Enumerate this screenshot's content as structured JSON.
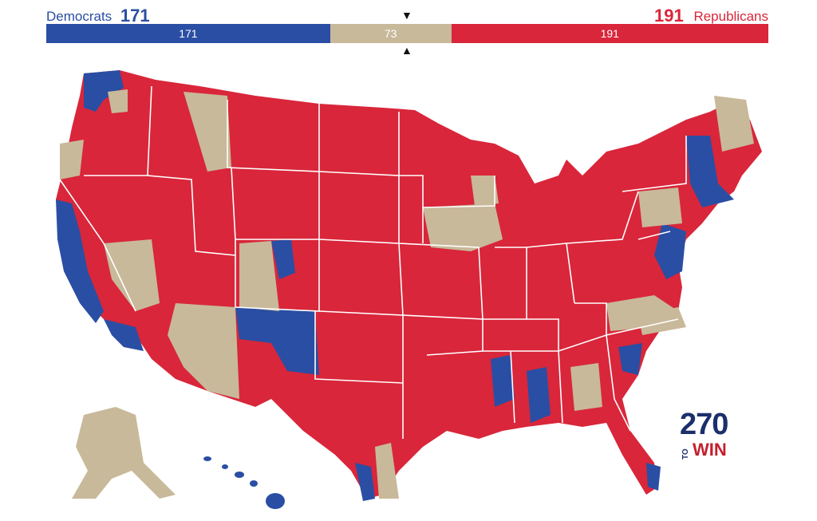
{
  "colors": {
    "democrat": "#2a4ea3",
    "toss_up": "#c8b99a",
    "republican": "#d9263a",
    "logo_navy": "#1b2f6b",
    "logo_red": "#c4202e",
    "border": "#ffffff"
  },
  "header": {
    "dem_party": "Democrats",
    "dem_count": "171",
    "rep_party": "Republicans",
    "rep_count": "191",
    "marker_top": "▼",
    "marker_bottom": "▲"
  },
  "bar": {
    "total": 435,
    "segments": [
      {
        "name": "democrat",
        "value": 171,
        "label": "171"
      },
      {
        "name": "toss_up",
        "value": 73,
        "label": "73"
      },
      {
        "name": "republican",
        "value": 191,
        "label": "191"
      }
    ]
  },
  "map": {
    "icons": {
      "marker_top": "down-triangle-icon",
      "marker_bottom": "up-triangle-icon"
    }
  },
  "logo": {
    "number": "270",
    "to": "TO",
    "win": "WIN"
  }
}
